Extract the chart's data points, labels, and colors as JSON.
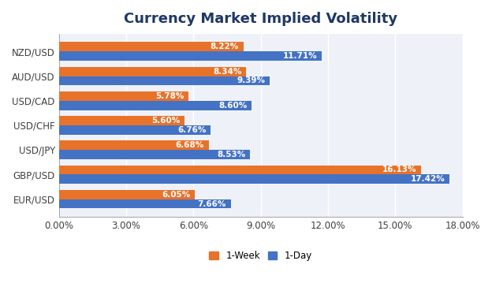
{
  "title": "Currency Market Implied Volatility",
  "categories": [
    "NZD/USD",
    "AUD/USD",
    "USD/CAD",
    "USD/CHF",
    "USD/JPY",
    "GBP/USD",
    "EUR/USD"
  ],
  "week1_values": [
    8.22,
    8.34,
    5.78,
    5.6,
    6.68,
    16.13,
    6.05
  ],
  "day1_values": [
    11.71,
    9.39,
    8.6,
    6.76,
    8.53,
    17.42,
    7.66
  ],
  "week1_color": "#E8722A",
  "day1_color": "#4472C4",
  "background_color": "#FFFFFF",
  "plot_bg_color": "#EEF2F8",
  "title_color": "#1F3864",
  "tick_color": "#404040",
  "bar_label_color": "#FFFFFF",
  "bar_height": 0.38,
  "xlim": [
    0,
    18
  ],
  "xtick_values": [
    0,
    3,
    6,
    9,
    12,
    15,
    18
  ],
  "xtick_labels": [
    "0.00%",
    "3.00%",
    "6.00%",
    "9.00%",
    "12.00%",
    "15.00%",
    "18.00%"
  ],
  "legend_labels": [
    "1-Week",
    "1-Day"
  ],
  "title_fontsize": 13,
  "axis_fontsize": 8.5,
  "bar_label_fontsize": 7.5,
  "legend_fontsize": 8.5
}
